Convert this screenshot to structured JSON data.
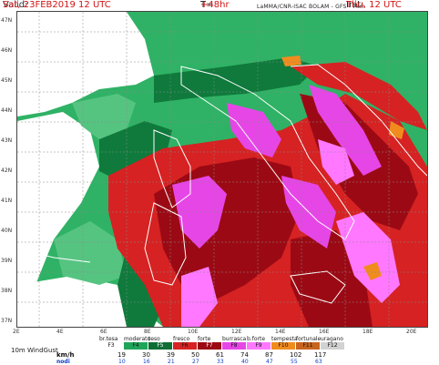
{
  "header": {
    "valid_label": "Valid:",
    "valid_value": "Sat, 23FEB2019   12 UTC",
    "forecast_label": "T=",
    "forecast_value": "+48hr",
    "model": "LaMMA/CNR-ISAC        BOLAM - GFS - 7km",
    "init_label": "Init:",
    "init_value": "Thu, 12 UTC"
  },
  "axes": {
    "lat_labels": [
      "47N",
      "46N",
      "45N",
      "44N",
      "43N",
      "42N",
      "41N",
      "40N",
      "39N",
      "38N",
      "37N"
    ],
    "lon_labels": [
      "2E",
      "4E",
      "6E",
      "8E",
      "10E",
      "12E",
      "14E",
      "16E",
      "18E",
      "20E"
    ]
  },
  "legend": {
    "title": "10m WindGust",
    "unit_kmh": "km/h",
    "unit_nodi": "nodi",
    "classes": [
      {
        "name": "br.tesa",
        "force": "F3",
        "color": "#ffffff"
      },
      {
        "name": "moderato",
        "force": "F4",
        "color": "#1fa55a"
      },
      {
        "name": "teso",
        "force": "F5",
        "color": "#0d6e34"
      },
      {
        "name": "fresco",
        "force": "F6",
        "color": "#d62222"
      },
      {
        "name": "forte",
        "force": "F7",
        "color": "#9b0a14"
      },
      {
        "name": "burrasca",
        "force": "F8",
        "color": "#e646e6"
      },
      {
        "name": "b.forte",
        "force": "F9",
        "color": "#ff78ff"
      },
      {
        "name": "tempesta",
        "force": "F10",
        "color": "#f08c1e"
      },
      {
        "name": "fortunale",
        "force": "F11",
        "color": "#c8641e"
      },
      {
        "name": "uragano",
        "force": "F12",
        "color": "#d2d2d2"
      }
    ],
    "kmh_thresholds": [
      "19",
      "30",
      "39",
      "50",
      "61",
      "74",
      "87",
      "102",
      "117"
    ],
    "nodi_thresholds": [
      "10",
      "16",
      "21",
      "27",
      "33",
      "40",
      "47",
      "55",
      "63"
    ]
  },
  "colors": {
    "land_low": "#2fb265",
    "sea_dark": "#0f7a3c",
    "strong": "#d62222",
    "very_strong": "#9b0a14",
    "gale": "#e646e6",
    "severe_gale": "#ff78ff",
    "storm": "#f08c1e"
  }
}
